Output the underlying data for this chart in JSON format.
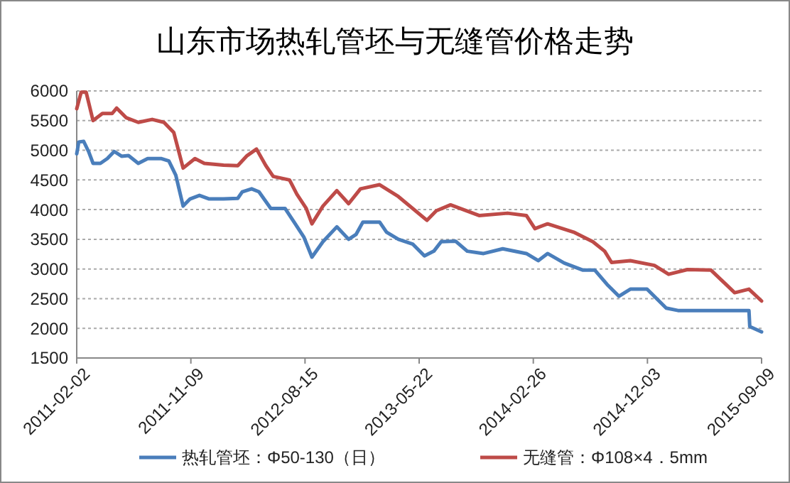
{
  "chart_data": {
    "type": "line",
    "title": "山东市场热轧管坯与无缝管价格走势",
    "xlim": [
      "2011-02-02",
      "2015-09-09"
    ],
    "xticks": [
      "2011-02-02",
      "2011-11-09",
      "2012-08-15",
      "2013-05-22",
      "2014-02-26",
      "2014-12-03",
      "2015-09-09"
    ],
    "ylim": [
      1500,
      6000
    ],
    "yticks": [
      1500,
      2000,
      2500,
      3000,
      3500,
      4000,
      4500,
      5000,
      5500,
      6000
    ],
    "grid": "y",
    "legend": "bottom",
    "marker": "none",
    "line_style": "solid",
    "series": [
      {
        "name": "热轧管坯：Φ50-130（日）",
        "color": "#4a7ebb",
        "x": [
          "2011-02-02",
          "2011-02-07",
          "2011-02-19",
          "2011-03-03",
          "2011-03-14",
          "2011-04-01",
          "2011-04-18",
          "2011-05-05",
          "2011-05-23",
          "2011-06-09",
          "2011-07-03",
          "2011-07-26",
          "2011-08-29",
          "2011-09-16",
          "2011-10-03",
          "2011-10-21",
          "2011-11-07",
          "2011-11-30",
          "2011-12-24",
          "2012-01-28",
          "2012-03-03",
          "2012-03-14",
          "2012-04-06",
          "2012-04-24",
          "2012-05-23",
          "2012-06-27",
          "2012-07-20",
          "2012-08-12",
          "2012-09-01",
          "2012-09-28",
          "2012-11-01",
          "2012-11-30",
          "2012-12-18",
          "2013-01-04",
          "2013-02-14",
          "2013-03-03",
          "2013-04-01",
          "2013-05-06",
          "2013-06-04",
          "2013-06-27",
          "2013-07-15",
          "2013-08-19",
          "2013-09-17",
          "2013-10-27",
          "2013-12-13",
          "2014-02-09",
          "2014-03-10",
          "2014-04-02",
          "2014-05-13",
          "2014-06-28",
          "2014-07-27",
          "2014-08-26",
          "2014-09-24",
          "2014-10-22",
          "2014-12-02",
          "2015-01-18",
          "2015-02-16",
          "2015-05-20",
          "2015-08-09",
          "2015-08-11",
          "2015-09-09"
        ],
        "values": [
          4940,
          5140,
          5150,
          4980,
          4780,
          4780,
          4860,
          4980,
          4900,
          4910,
          4780,
          4860,
          4860,
          4820,
          4580,
          4060,
          4180,
          4240,
          4180,
          4180,
          4190,
          4300,
          4350,
          4300,
          4020,
          4020,
          3780,
          3540,
          3200,
          3460,
          3710,
          3500,
          3580,
          3790,
          3790,
          3620,
          3500,
          3420,
          3220,
          3300,
          3460,
          3470,
          3300,
          3260,
          3340,
          3260,
          3140,
          3260,
          3100,
          2980,
          2980,
          2740,
          2540,
          2660,
          2660,
          2340,
          2300,
          2300,
          2300,
          2030,
          1940
        ]
      },
      {
        "name": "无缝管：Φ108×4．5mm",
        "color": "#be4b48",
        "x": [
          "2011-02-02",
          "2011-02-13",
          "2011-02-25",
          "2011-03-14",
          "2011-04-06",
          "2011-04-30",
          "2011-05-11",
          "2011-06-03",
          "2011-07-03",
          "2011-08-06",
          "2011-09-04",
          "2011-09-28",
          "2011-10-21",
          "2011-11-19",
          "2011-12-12",
          "2012-01-28",
          "2012-03-03",
          "2012-03-26",
          "2012-04-18",
          "2012-05-11",
          "2012-05-29",
          "2012-07-08",
          "2012-07-26",
          "2012-08-18",
          "2012-09-01",
          "2012-09-28",
          "2012-11-01",
          "2012-11-30",
          "2012-12-29",
          "2013-02-14",
          "2013-04-01",
          "2013-06-10",
          "2013-07-03",
          "2013-08-07",
          "2013-10-16",
          "2013-12-25",
          "2014-02-09",
          "2014-03-02",
          "2014-04-02",
          "2014-06-05",
          "2014-07-22",
          "2014-08-20",
          "2014-09-06",
          "2014-10-22",
          "2014-12-20",
          "2015-01-24",
          "2015-03-11",
          "2015-05-08",
          "2015-07-05",
          "2015-08-09",
          "2015-09-09"
        ],
        "values": [
          5700,
          5980,
          5980,
          5500,
          5620,
          5620,
          5710,
          5550,
          5470,
          5520,
          5470,
          5300,
          4700,
          4860,
          4780,
          4750,
          4740,
          4910,
          5020,
          4740,
          4560,
          4500,
          4260,
          4020,
          3760,
          4060,
          4320,
          4100,
          4350,
          4420,
          4220,
          3820,
          3980,
          4080,
          3900,
          3940,
          3900,
          3680,
          3760,
          3620,
          3460,
          3300,
          3110,
          3140,
          3060,
          2910,
          2990,
          2980,
          2600,
          2660,
          2460
        ]
      }
    ]
  }
}
